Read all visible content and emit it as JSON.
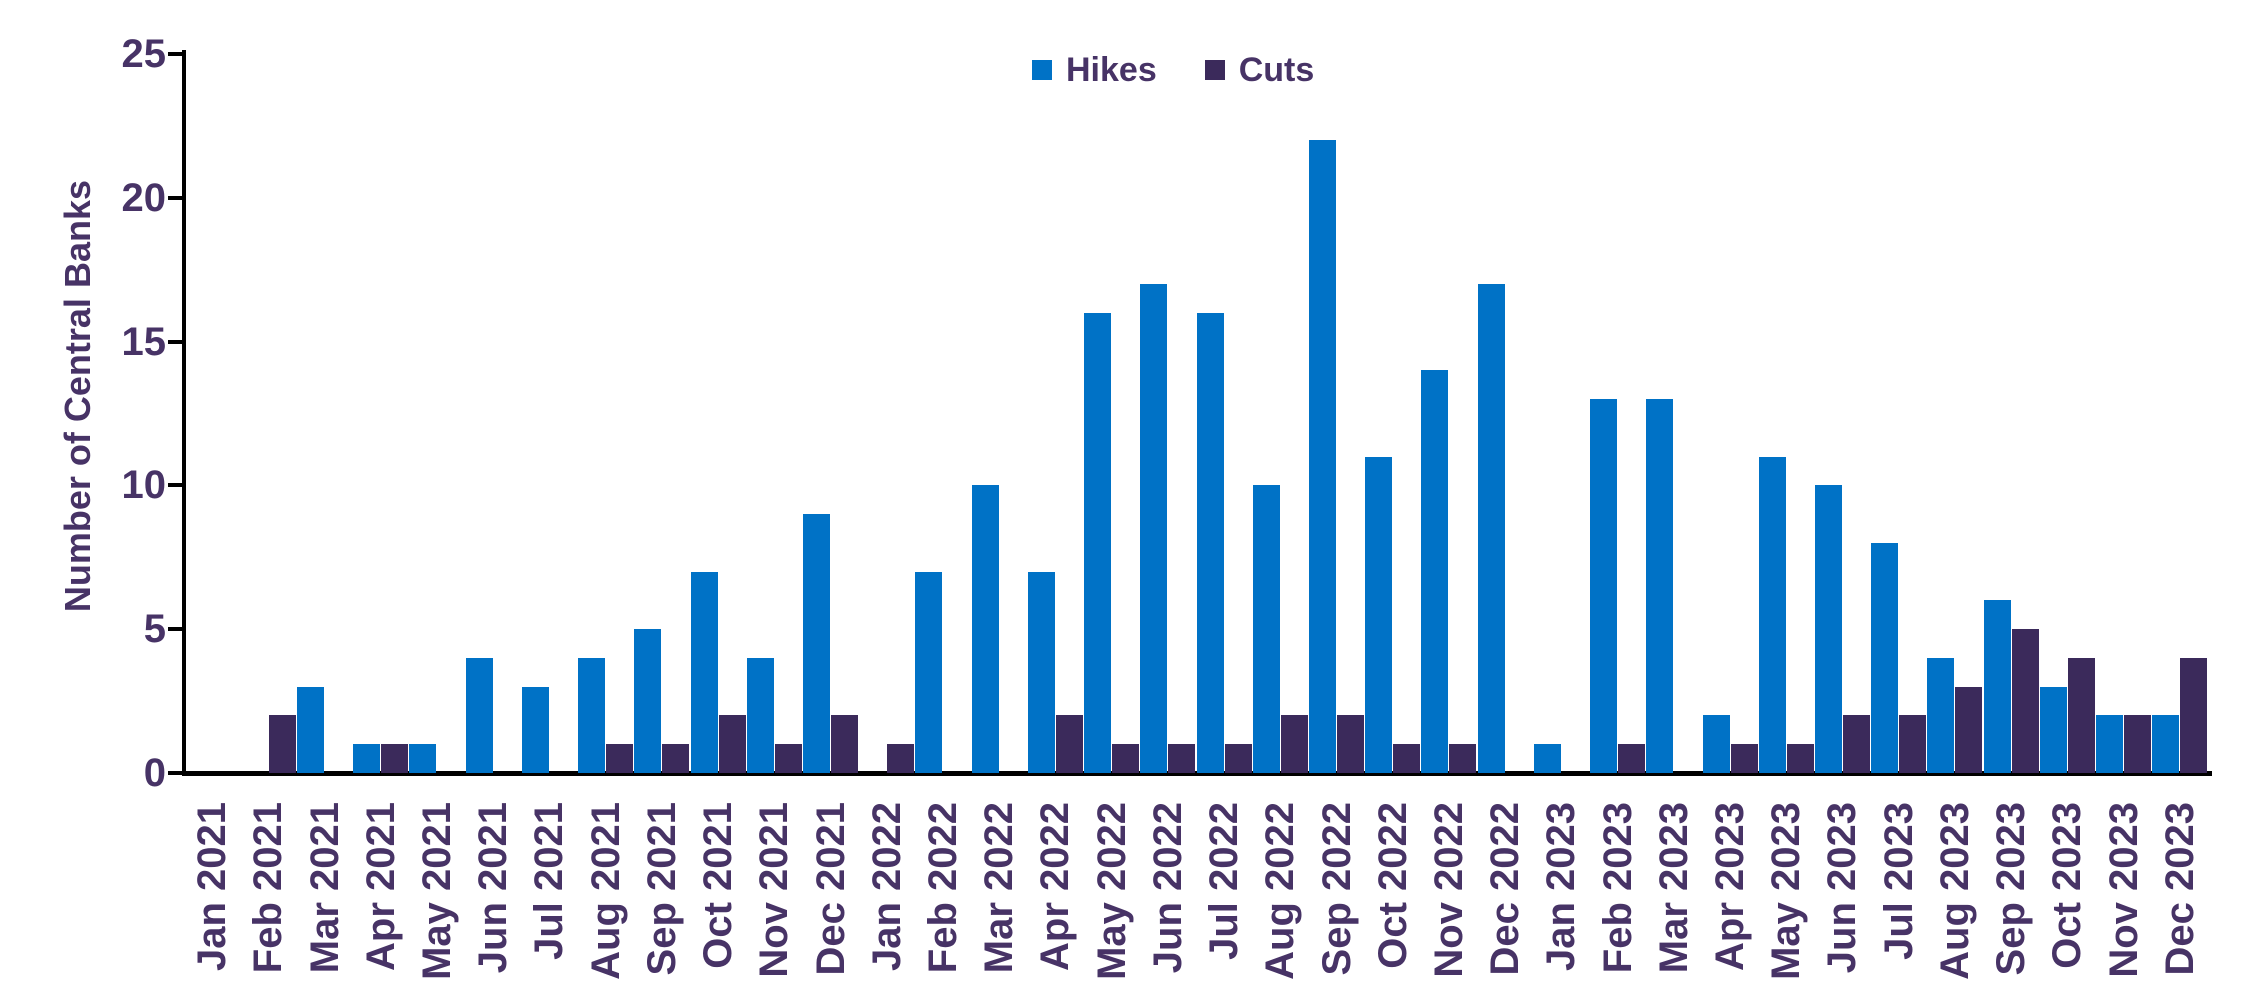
{
  "chart_data": {
    "type": "bar",
    "title": "",
    "ylabel": "Number of Central Banks",
    "xlabel": "",
    "ylim": [
      0,
      25
    ],
    "yticks": [
      0,
      5,
      10,
      15,
      20,
      25
    ],
    "grid": false,
    "legend_position": "top-center",
    "categories": [
      "Jan 2021",
      "Feb 2021",
      "Mar 2021",
      "Apr 2021",
      "May 2021",
      "Jun 2021",
      "Jul 2021",
      "Aug 2021",
      "Sep 2021",
      "Oct 2021",
      "Nov 2021",
      "Dec 2021",
      "Jan 2022",
      "Feb 2022",
      "Mar 2022",
      "Apr 2022",
      "May 2022",
      "Jun 2022",
      "Jul 2022",
      "Aug 2022",
      "Sep 2022",
      "Oct 2022",
      "Nov 2022",
      "Dec 2022",
      "Jan 2023",
      "Feb 2023",
      "Mar 2023",
      "Apr 2023",
      "May 2023",
      "Jun 2023",
      "Jul 2023",
      "Aug 2023",
      "Sep 2023",
      "Oct 2023",
      "Nov 2023",
      "Dec 2023"
    ],
    "series": [
      {
        "name": "Hikes",
        "color": "#0072C6",
        "values": [
          0,
          0,
          3,
          1,
          1,
          4,
          3,
          4,
          5,
          7,
          4,
          9,
          0,
          7,
          10,
          7,
          16,
          17,
          16,
          10,
          22,
          11,
          14,
          17,
          1,
          13,
          13,
          2,
          11,
          10,
          8,
          4,
          6,
          3,
          2,
          2
        ]
      },
      {
        "name": "Cuts",
        "color": "#3B2A5B",
        "values": [
          0,
          2,
          0,
          1,
          0,
          0,
          0,
          1,
          1,
          2,
          1,
          2,
          1,
          0,
          0,
          2,
          1,
          1,
          1,
          2,
          2,
          1,
          1,
          0,
          0,
          1,
          0,
          1,
          1,
          2,
          2,
          3,
          5,
          4,
          2,
          4
        ]
      }
    ]
  },
  "colors": {
    "axis": "#000000",
    "label_text": "#473366",
    "background": "#FFFFFF"
  }
}
